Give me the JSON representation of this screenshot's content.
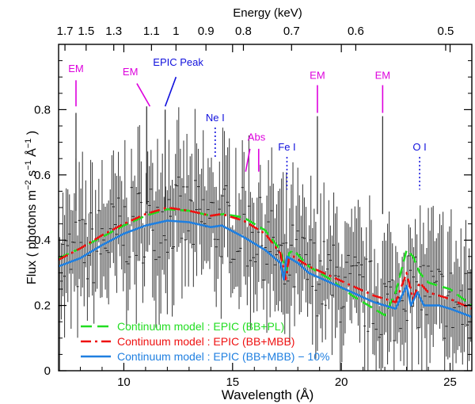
{
  "chart_data": {
    "type": "line",
    "xlabel": "Wavelength (Å)",
    "ylabel_parts": [
      "Flux ( photons m",
      "−2",
      " s",
      "−1",
      " Å",
      "−1",
      " )"
    ],
    "top_axis_label": "Energy (keV)",
    "xlim": [
      7,
      26
    ],
    "ylim": [
      0,
      1.0
    ],
    "x_ticks": [
      10,
      15,
      20,
      25
    ],
    "y_ticks": [
      0,
      0.2,
      0.4,
      0.6,
      0.8
    ],
    "top_ticks": [
      {
        "label": "1.7",
        "wavelength": 7.293
      },
      {
        "label": "1.5",
        "wavelength": 8.266
      },
      {
        "label": "1.3",
        "wavelength": 9.537
      },
      {
        "label": "1.1",
        "wavelength": 11.271
      },
      {
        "label": "1",
        "wavelength": 12.398
      },
      {
        "label": "0.9",
        "wavelength": 13.776
      },
      {
        "label": "0.8",
        "wavelength": 15.498
      },
      {
        "label": "0.7",
        "wavelength": 17.712
      },
      {
        "label": "0.6",
        "wavelength": 20.664
      },
      {
        "label": "0.5",
        "wavelength": 24.797
      }
    ],
    "series": [
      {
        "name": "Continuum model : EPIC (BB+PL)",
        "color": "#22dd22",
        "style": "dashed",
        "points": [
          [
            7,
            0.345
          ],
          [
            8,
            0.375
          ],
          [
            9,
            0.41
          ],
          [
            10,
            0.445
          ],
          [
            11,
            0.475
          ],
          [
            12,
            0.495
          ],
          [
            13,
            0.49
          ],
          [
            14,
            0.475
          ],
          [
            14.6,
            0.48
          ],
          [
            15.5,
            0.47
          ],
          [
            16.5,
            0.43
          ],
          [
            17.2,
            0.37
          ],
          [
            17.45,
            0.3
          ],
          [
            17.6,
            0.36
          ],
          [
            17.8,
            0.37
          ],
          [
            18.5,
            0.32
          ],
          [
            19.5,
            0.28
          ],
          [
            20.5,
            0.23
          ],
          [
            21.5,
            0.19
          ],
          [
            22,
            0.17
          ],
          [
            22.5,
            0.24
          ],
          [
            23,
            0.37
          ],
          [
            23.3,
            0.35
          ],
          [
            23.6,
            0.3
          ],
          [
            24,
            0.27
          ],
          [
            24.5,
            0.26
          ],
          [
            25,
            0.25
          ],
          [
            26,
            0.2
          ]
        ]
      },
      {
        "name": "Continuum model : EPIC (BB+MBB)",
        "color": "#ee1111",
        "style": "dashdot",
        "points": [
          [
            7,
            0.34
          ],
          [
            8,
            0.375
          ],
          [
            9,
            0.415
          ],
          [
            10,
            0.45
          ],
          [
            11,
            0.48
          ],
          [
            12,
            0.5
          ],
          [
            13,
            0.49
          ],
          [
            14,
            0.475
          ],
          [
            14.5,
            0.48
          ],
          [
            15.5,
            0.46
          ],
          [
            16.5,
            0.42
          ],
          [
            17.2,
            0.36
          ],
          [
            17.45,
            0.28
          ],
          [
            17.6,
            0.35
          ],
          [
            17.8,
            0.35
          ],
          [
            18.5,
            0.32
          ],
          [
            19.5,
            0.29
          ],
          [
            20.5,
            0.26
          ],
          [
            21.5,
            0.23
          ],
          [
            22.5,
            0.21
          ],
          [
            23,
            0.3
          ],
          [
            23.3,
            0.22
          ],
          [
            23.6,
            0.27
          ],
          [
            24,
            0.24
          ],
          [
            25,
            0.22
          ],
          [
            26,
            0.19
          ]
        ]
      },
      {
        "name": "Continuum model : EPIC (BB+MBB) − 10%",
        "color": "#1f7fe0",
        "style": "solid",
        "points": [
          [
            7,
            0.32
          ],
          [
            8,
            0.345
          ],
          [
            9,
            0.385
          ],
          [
            10,
            0.42
          ],
          [
            11,
            0.445
          ],
          [
            12,
            0.46
          ],
          [
            13,
            0.455
          ],
          [
            14,
            0.44
          ],
          [
            14.5,
            0.445
          ],
          [
            15.5,
            0.41
          ],
          [
            16.5,
            0.37
          ],
          [
            17.2,
            0.33
          ],
          [
            17.35,
            0.28
          ],
          [
            17.5,
            0.35
          ],
          [
            18,
            0.33
          ],
          [
            18.5,
            0.3
          ],
          [
            19.5,
            0.27
          ],
          [
            20.5,
            0.24
          ],
          [
            21.5,
            0.21
          ],
          [
            22.5,
            0.19
          ],
          [
            23,
            0.26
          ],
          [
            23.2,
            0.2
          ],
          [
            23.5,
            0.24
          ],
          [
            23.8,
            0.2
          ],
          [
            24.5,
            0.2
          ],
          [
            25,
            0.19
          ],
          [
            26,
            0.165
          ]
        ]
      }
    ],
    "annotations": [
      {
        "text": "EM",
        "color": "#dd00dd",
        "x": 7.8,
        "y_text": 0.915,
        "line": [
          [
            7.8,
            0.81
          ],
          [
            7.8,
            0.89
          ]
        ],
        "style": "solid"
      },
      {
        "text": "EM",
        "color": "#dd00dd",
        "x": 10.3,
        "y_text": 0.905,
        "line": [
          [
            10.6,
            0.88
          ],
          [
            11.2,
            0.81
          ]
        ],
        "style": "solid"
      },
      {
        "text": "EPIC Peak",
        "color": "#1111dd",
        "x": 12.5,
        "y_text": 0.935,
        "line": [
          [
            12.4,
            0.9
          ],
          [
            11.9,
            0.81
          ]
        ],
        "style": "solid"
      },
      {
        "text": "Ne I",
        "color": "#1111dd",
        "x": 14.2,
        "y_text": 0.765,
        "line": [
          [
            14.2,
            0.745
          ],
          [
            14.2,
            0.655
          ]
        ],
        "style": "dotted"
      },
      {
        "text": "Abs",
        "color": "#dd00dd",
        "x": 16.1,
        "y_text": 0.705,
        "line": [
          [
            15.8,
            0.68
          ],
          [
            15.6,
            0.61
          ],
          [
            16.2,
            0.68
          ],
          [
            16.2,
            0.61
          ]
        ],
        "style": "solid"
      },
      {
        "text": "Fe I",
        "color": "#1111dd",
        "x": 17.5,
        "y_text": 0.675,
        "line": [
          [
            17.5,
            0.655
          ],
          [
            17.5,
            0.555
          ]
        ],
        "style": "dotted"
      },
      {
        "text": "EM",
        "color": "#dd00dd",
        "x": 18.9,
        "y_text": 0.895,
        "line": [
          [
            18.9,
            0.875
          ],
          [
            18.9,
            0.79
          ]
        ],
        "style": "solid"
      },
      {
        "text": "EM",
        "color": "#dd00dd",
        "x": 21.9,
        "y_text": 0.895,
        "line": [
          [
            21.9,
            0.875
          ],
          [
            21.9,
            0.79
          ]
        ],
        "style": "solid"
      },
      {
        "text": "O I",
        "color": "#1111dd",
        "x": 23.6,
        "y_text": 0.675,
        "line": [
          [
            23.6,
            0.655
          ],
          [
            23.6,
            0.555
          ]
        ],
        "style": "dotted"
      }
    ],
    "legend_placement": "bottom-left"
  }
}
